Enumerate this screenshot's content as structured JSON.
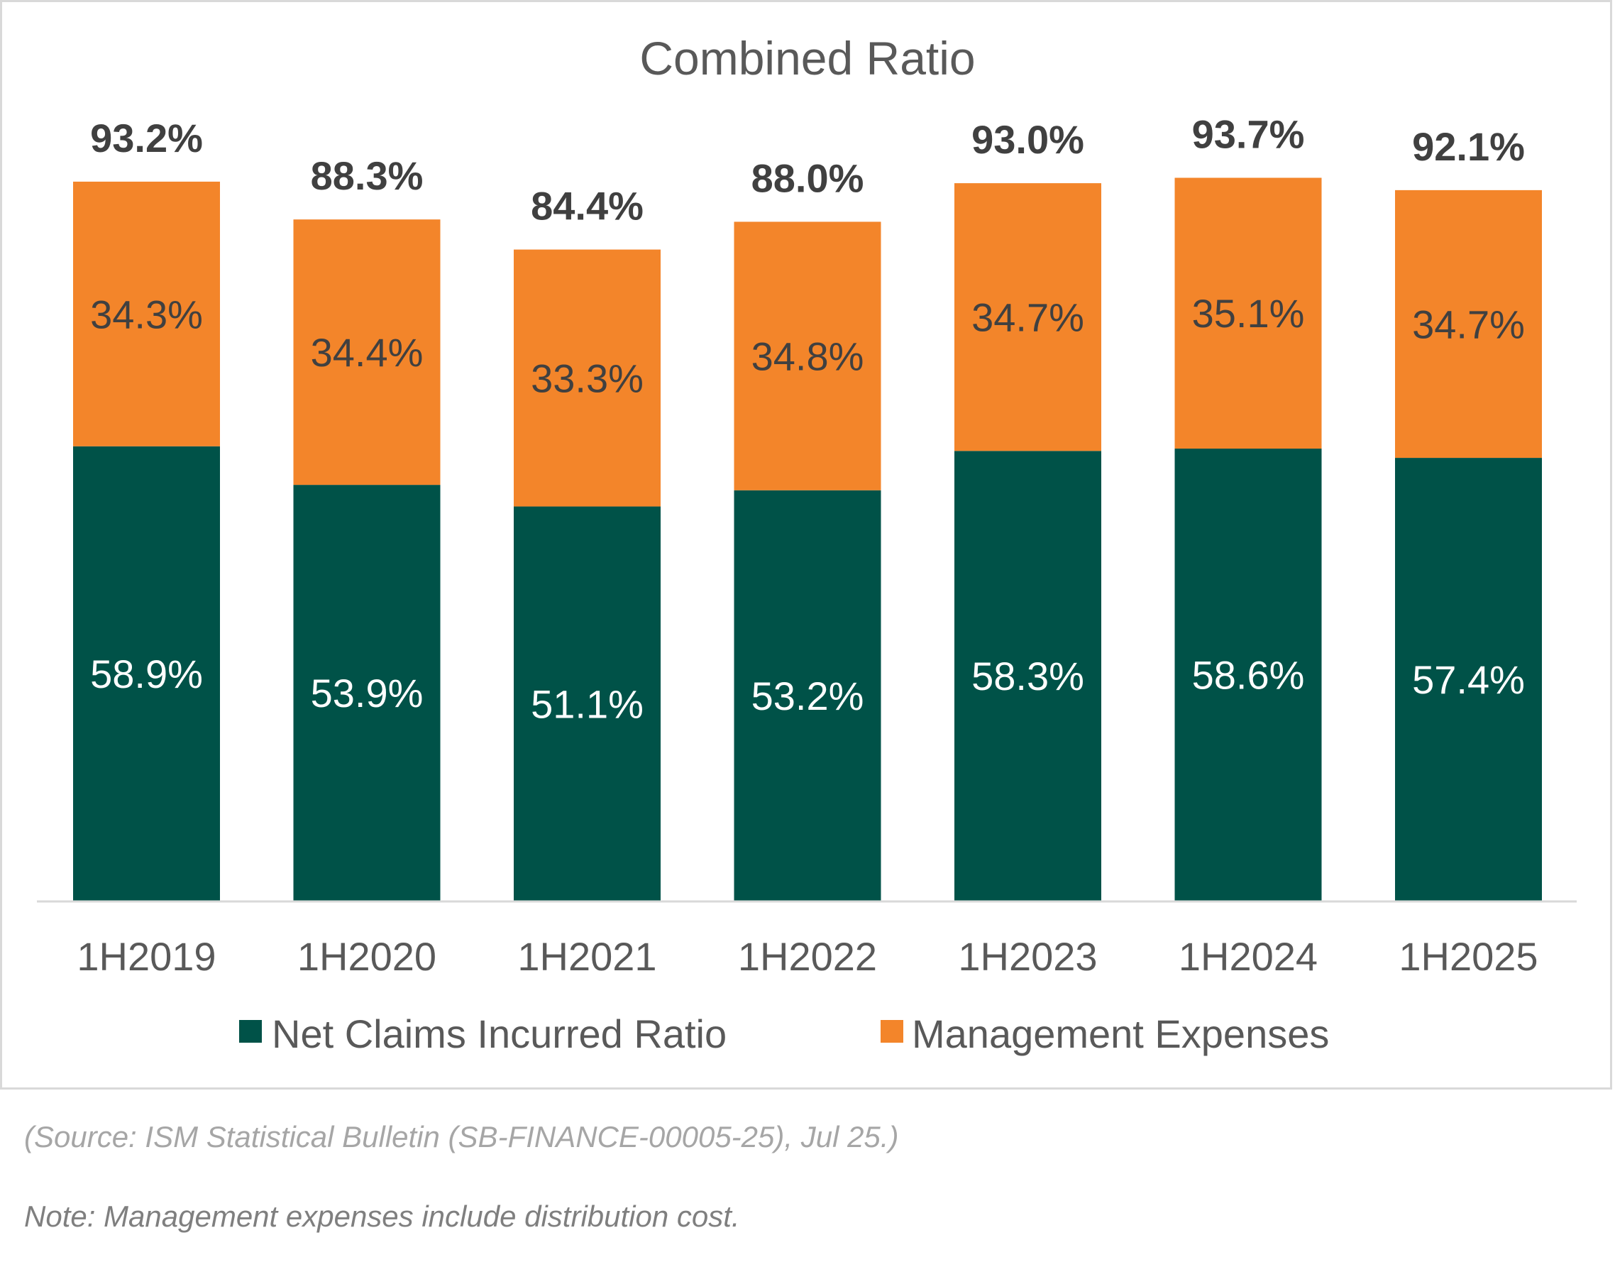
{
  "chart_data": {
    "type": "bar",
    "stacked": true,
    "title": "Combined Ratio",
    "xlabel": "",
    "ylabel": "",
    "ylim": [
      0,
      100
    ],
    "grid": false,
    "legend_position": "bottom",
    "categories": [
      "1H2019",
      "1H2020",
      "1H2021",
      "1H2022",
      "1H2023",
      "1H2024",
      "1H2025"
    ],
    "series": [
      {
        "name": "Net Claims Incurred Ratio",
        "color": "#005248",
        "values": [
          58.9,
          53.9,
          51.1,
          53.2,
          58.3,
          58.6,
          57.4
        ],
        "labels": [
          "58.9%",
          "53.9%",
          "51.1%",
          "53.2%",
          "58.3%",
          "58.6%",
          "57.4%"
        ]
      },
      {
        "name": "Management Expenses",
        "color": "#f3852a",
        "values": [
          34.3,
          34.4,
          33.3,
          34.8,
          34.7,
          35.1,
          34.7
        ],
        "labels": [
          "34.3%",
          "34.4%",
          "33.3%",
          "34.8%",
          "34.7%",
          "35.1%",
          "34.7%"
        ]
      }
    ],
    "totals": [
      93.2,
      88.3,
      84.4,
      88.0,
      93.0,
      93.7,
      92.1
    ],
    "total_labels": [
      "93.2%",
      "88.3%",
      "84.4%",
      "88.0%",
      "93.0%",
      "93.7%",
      "92.1%"
    ]
  },
  "notes": {
    "source": "(Source: ISM Statistical Bulletin (SB-FINANCE-00005-25), Jul 25.)",
    "footnote": "Note: Management expenses include distribution cost."
  }
}
